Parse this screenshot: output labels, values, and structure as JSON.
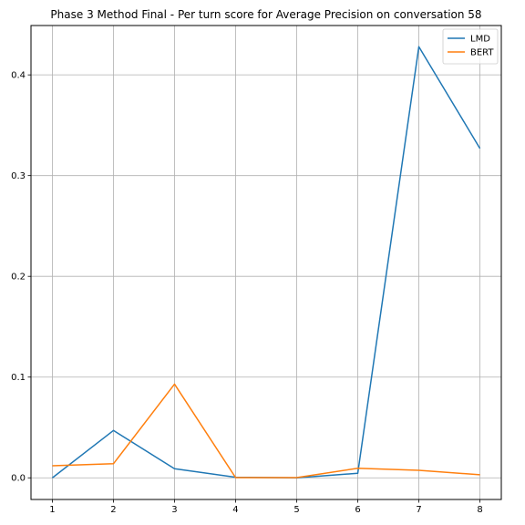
{
  "chart_data": {
    "type": "line",
    "title": "Phase 3 Method Final - Per turn score for Average Precision on conversation 58",
    "xlabel": "",
    "ylabel": "",
    "x": [
      1,
      2,
      3,
      4,
      5,
      6,
      7,
      8
    ],
    "xlim": [
      0.65,
      8.35
    ],
    "ylim": [
      -0.0215,
      0.449
    ],
    "yticks": [
      0.0,
      0.1,
      0.2,
      0.3,
      0.4
    ],
    "xticks": [
      1,
      2,
      3,
      4,
      5,
      6,
      7,
      8
    ],
    "grid": true,
    "legend_position": "top-right",
    "series": [
      {
        "name": "LMD",
        "color": "#1f77b4",
        "values": [
          0.0,
          0.047,
          0.009,
          0.0006,
          0.0,
          0.0045,
          0.428,
          0.327
        ]
      },
      {
        "name": "BERT",
        "color": "#ff7f0e",
        "values": [
          0.012,
          0.014,
          0.093,
          0.0002,
          0.0002,
          0.0095,
          0.0075,
          0.003
        ]
      }
    ]
  }
}
